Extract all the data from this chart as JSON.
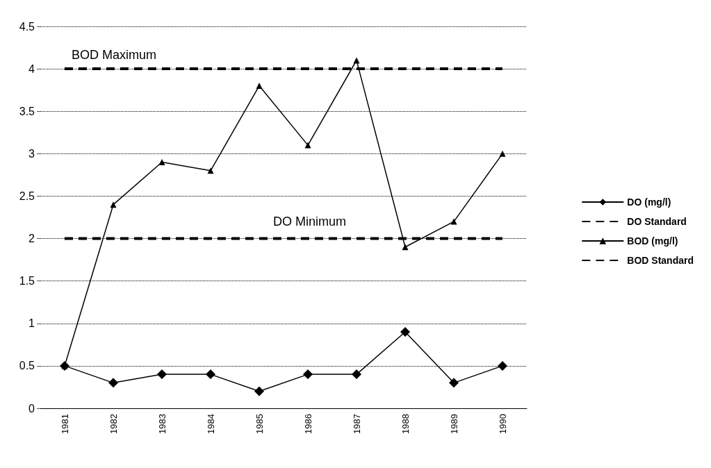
{
  "chart_data": {
    "type": "line",
    "categories": [
      "1981",
      "1982",
      "1983",
      "1984",
      "1985",
      "1986",
      "1987",
      "1988",
      "1989",
      "1990"
    ],
    "series": [
      {
        "name": "DO (mg/l)",
        "color": "#000000",
        "marker": "diamond",
        "line_style": "solid",
        "values": [
          0.5,
          0.3,
          0.4,
          0.4,
          0.2,
          0.4,
          0.4,
          0.9,
          0.3,
          0.5
        ]
      },
      {
        "name": "DO Standard",
        "color": "#000000",
        "marker": "none",
        "line_style": "dashed",
        "values": [
          2,
          2,
          2,
          2,
          2,
          2,
          2,
          2,
          2,
          2
        ]
      },
      {
        "name": "BOD (mg/l)",
        "color": "#000000",
        "marker": "triangle",
        "line_style": "solid",
        "values": [
          0.5,
          2.4,
          2.9,
          2.8,
          3.8,
          3.1,
          4.1,
          1.9,
          2.2,
          3.0
        ]
      },
      {
        "name": "BOD Standard",
        "color": "#000000",
        "marker": "none",
        "line_style": "dashed",
        "values": [
          4,
          4,
          4,
          4,
          4,
          4,
          4,
          4,
          4,
          4
        ]
      }
    ],
    "annotations": [
      "BOD Maximum",
      "DO Minimum"
    ],
    "ylim": [
      0,
      4.5
    ],
    "yticks": [
      0,
      0.5,
      1,
      1.5,
      2,
      2.5,
      3,
      3.5,
      4,
      4.5
    ],
    "grid": "y",
    "legend": "right"
  }
}
